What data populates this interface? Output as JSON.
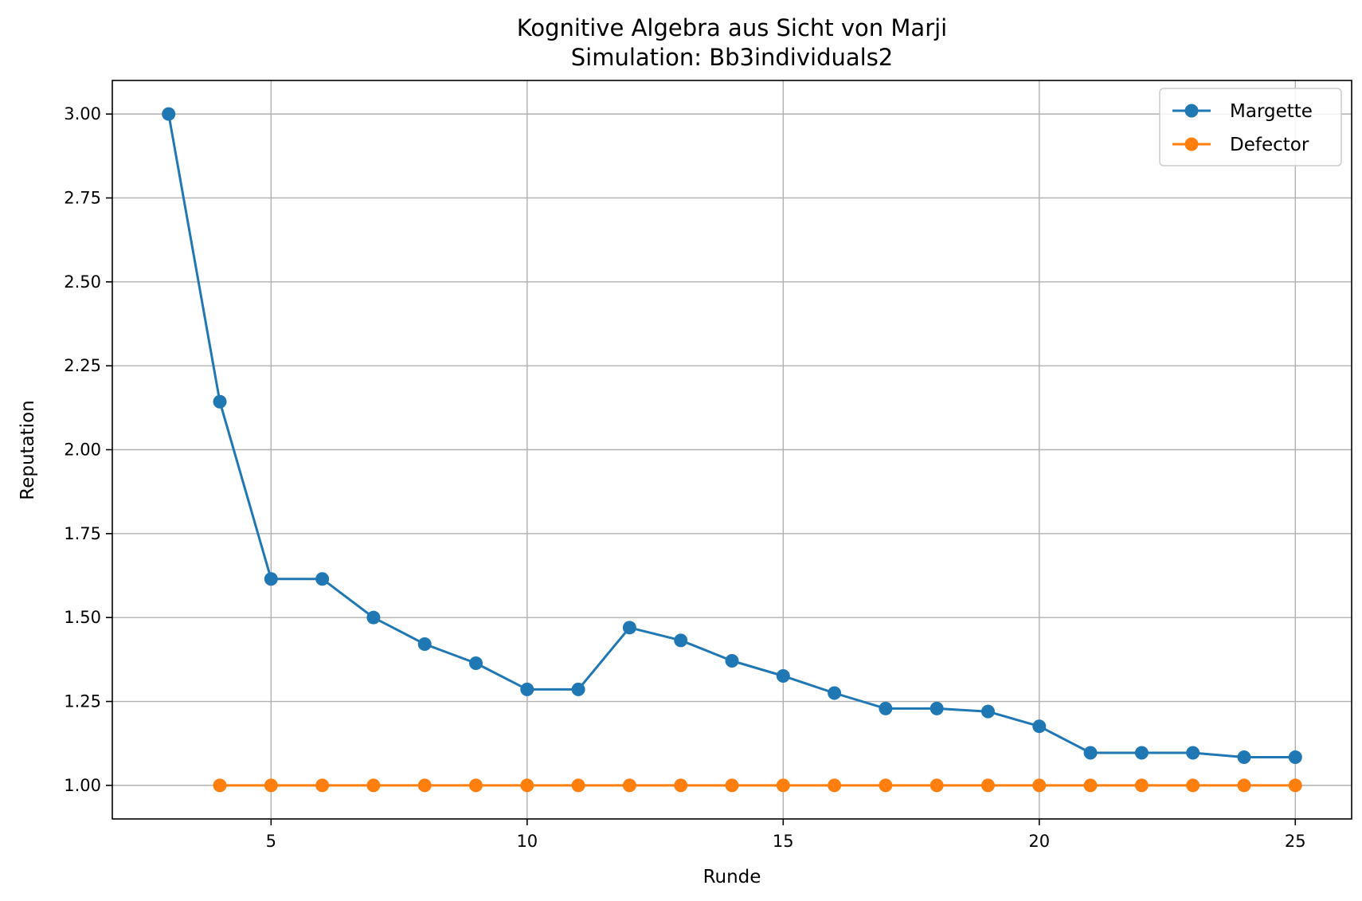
{
  "chart_data": {
    "type": "line",
    "title": "Kognitive Algebra aus Sicht von Marji",
    "subtitle": "Simulation: Bb3individuals2",
    "xlabel": "Runde",
    "ylabel": "Reputation",
    "xlim": [
      1.9,
      26.1
    ],
    "ylim": [
      0.9,
      3.1
    ],
    "xticks": [
      5,
      10,
      15,
      20,
      25
    ],
    "yticks": [
      1.0,
      1.25,
      1.5,
      1.75,
      2.0,
      2.25,
      2.5,
      2.75,
      3.0
    ],
    "ytick_labels": [
      "1.00",
      "1.25",
      "1.50",
      "1.75",
      "2.00",
      "2.25",
      "2.50",
      "2.75",
      "3.00"
    ],
    "grid": true,
    "legend": "upper right",
    "series": [
      {
        "name": "Margette",
        "color": "#1f77b4",
        "marker": "circle",
        "x": [
          3,
          4,
          5,
          6,
          7,
          8,
          9,
          10,
          11,
          12,
          13,
          14,
          15,
          16,
          17,
          18,
          19,
          20,
          21,
          22,
          23,
          24,
          25
        ],
        "y": [
          3.0,
          2.143,
          1.615,
          1.615,
          1.5,
          1.421,
          1.364,
          1.286,
          1.286,
          1.47,
          1.432,
          1.371,
          1.326,
          1.275,
          1.229,
          1.229,
          1.22,
          1.176,
          1.097,
          1.097,
          1.097,
          1.084,
          1.084
        ]
      },
      {
        "name": "Defector",
        "color": "#ff7f0e",
        "marker": "circle",
        "x": [
          4,
          5,
          6,
          7,
          8,
          9,
          10,
          11,
          12,
          13,
          14,
          15,
          16,
          17,
          18,
          19,
          20,
          21,
          22,
          23,
          24,
          25
        ],
        "y": [
          1.0,
          1.0,
          1.0,
          1.0,
          1.0,
          1.0,
          1.0,
          1.0,
          1.0,
          1.0,
          1.0,
          1.0,
          1.0,
          1.0,
          1.0,
          1.0,
          1.0,
          1.0,
          1.0,
          1.0,
          1.0,
          1.0
        ]
      }
    ]
  }
}
